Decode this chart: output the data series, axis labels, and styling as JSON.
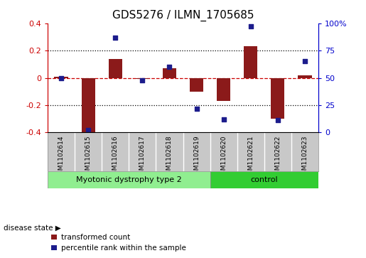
{
  "title": "GDS5276 / ILMN_1705685",
  "samples": [
    "GSM1102614",
    "GSM1102615",
    "GSM1102616",
    "GSM1102617",
    "GSM1102618",
    "GSM1102619",
    "GSM1102620",
    "GSM1102621",
    "GSM1102622",
    "GSM1102623"
  ],
  "red_bars": [
    0.01,
    -0.42,
    0.14,
    -0.01,
    0.07,
    -0.1,
    -0.17,
    0.23,
    -0.3,
    0.02
  ],
  "blue_dots": [
    50,
    2,
    87,
    48,
    60,
    22,
    12,
    97,
    11,
    65
  ],
  "ylim_left": [
    -0.4,
    0.4
  ],
  "ylim_right": [
    0,
    100
  ],
  "yticks_left": [
    -0.4,
    -0.2,
    0.0,
    0.2,
    0.4
  ],
  "ytick_labels_left": [
    "-0.4",
    "-0.2",
    "0",
    "0.2",
    "0.4"
  ],
  "yticks_right": [
    0,
    25,
    50,
    75,
    100
  ],
  "ytick_labels_right": [
    "0",
    "25",
    "50",
    "75",
    "100%"
  ],
  "red_color": "#8B1A1A",
  "blue_color": "#1C1C8C",
  "hline_color": "#CC0000",
  "group1_label": "Myotonic dystrophy type 2",
  "group2_label": "control",
  "group1_color": "#90EE90",
  "group2_color": "#32CD32",
  "group1_samples": 6,
  "group2_samples": 4,
  "disease_state_label": "disease state",
  "legend_red": "transformed count",
  "legend_blue": "percentile rank within the sample",
  "bar_width": 0.5,
  "bg_color": "#FFFFFF",
  "tick_label_bg": "#C8C8C8",
  "dotted_line_color": "#000000",
  "ylabel_left_color": "#CC0000",
  "ylabel_right_color": "#0000CC"
}
